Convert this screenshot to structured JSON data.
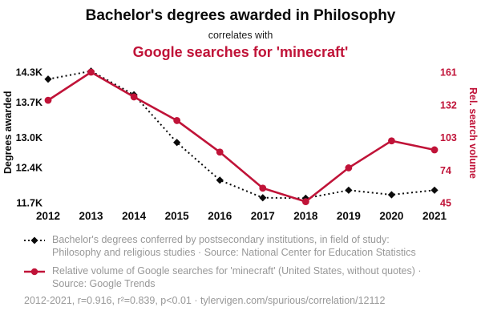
{
  "header": {
    "title": "Bachelor's degrees awarded in Philosophy",
    "subtitle": "correlates with",
    "red_title": "Google searches for 'minecraft'"
  },
  "colors": {
    "black_series": "#0a0a0a",
    "red_series": "#c01338",
    "legend_text": "#989898"
  },
  "chart_data": {
    "type": "line",
    "title": "Bachelor's degrees awarded in Philosophy correlates with Google searches for 'minecraft'",
    "categories": [
      "2012",
      "2013",
      "2014",
      "2015",
      "2016",
      "2017",
      "2018",
      "2019",
      "2020",
      "2021"
    ],
    "series": [
      {
        "name": "Bachelor's degrees conferred, field of study: Philosophy and religious studies",
        "axis": "left",
        "marker": "diamond",
        "line": "dotted",
        "values": [
          14160,
          14320,
          13850,
          12900,
          12150,
          11800,
          11790,
          11950,
          11860,
          11950
        ]
      },
      {
        "name": "Relative volume of Google searches for 'minecraft'",
        "axis": "right",
        "marker": "circle",
        "line": "solid",
        "values": [
          136,
          161,
          139,
          118,
          90,
          58,
          46,
          76,
          100,
          92
        ]
      }
    ],
    "left_axis": {
      "label": "Degrees awarded",
      "min": 11700,
      "max": 14300,
      "ticks": [
        {
          "value": 14300,
          "label": "14.3K"
        },
        {
          "value": 13700,
          "label": "13.7K"
        },
        {
          "value": 13000,
          "label": "13.0K"
        },
        {
          "value": 12400,
          "label": "12.4K"
        },
        {
          "value": 11700,
          "label": "11.7K"
        }
      ]
    },
    "right_axis": {
      "label": "Rel. search volume",
      "min": 45,
      "max": 161,
      "ticks": [
        {
          "value": 161,
          "label": "161"
        },
        {
          "value": 132,
          "label": "132"
        },
        {
          "value": 103,
          "label": "103"
        },
        {
          "value": 74,
          "label": "74"
        },
        {
          "value": 45,
          "label": "45"
        }
      ]
    },
    "grid": false,
    "legend_position": "bottom"
  },
  "legend": {
    "series1": "Bachelor's degrees conferred by postsecondary institutions, in field of study: Philosophy and religious studies · Source: National Center for Education Statistics",
    "series2": "Relative volume of Google searches for 'minecraft' (United States, without quotes) · Source: Google Trends",
    "footer": "2012-2021, r=0.916, r²=0.839, p<0.01 · tylervigen.com/spurious/correlation/12112"
  }
}
